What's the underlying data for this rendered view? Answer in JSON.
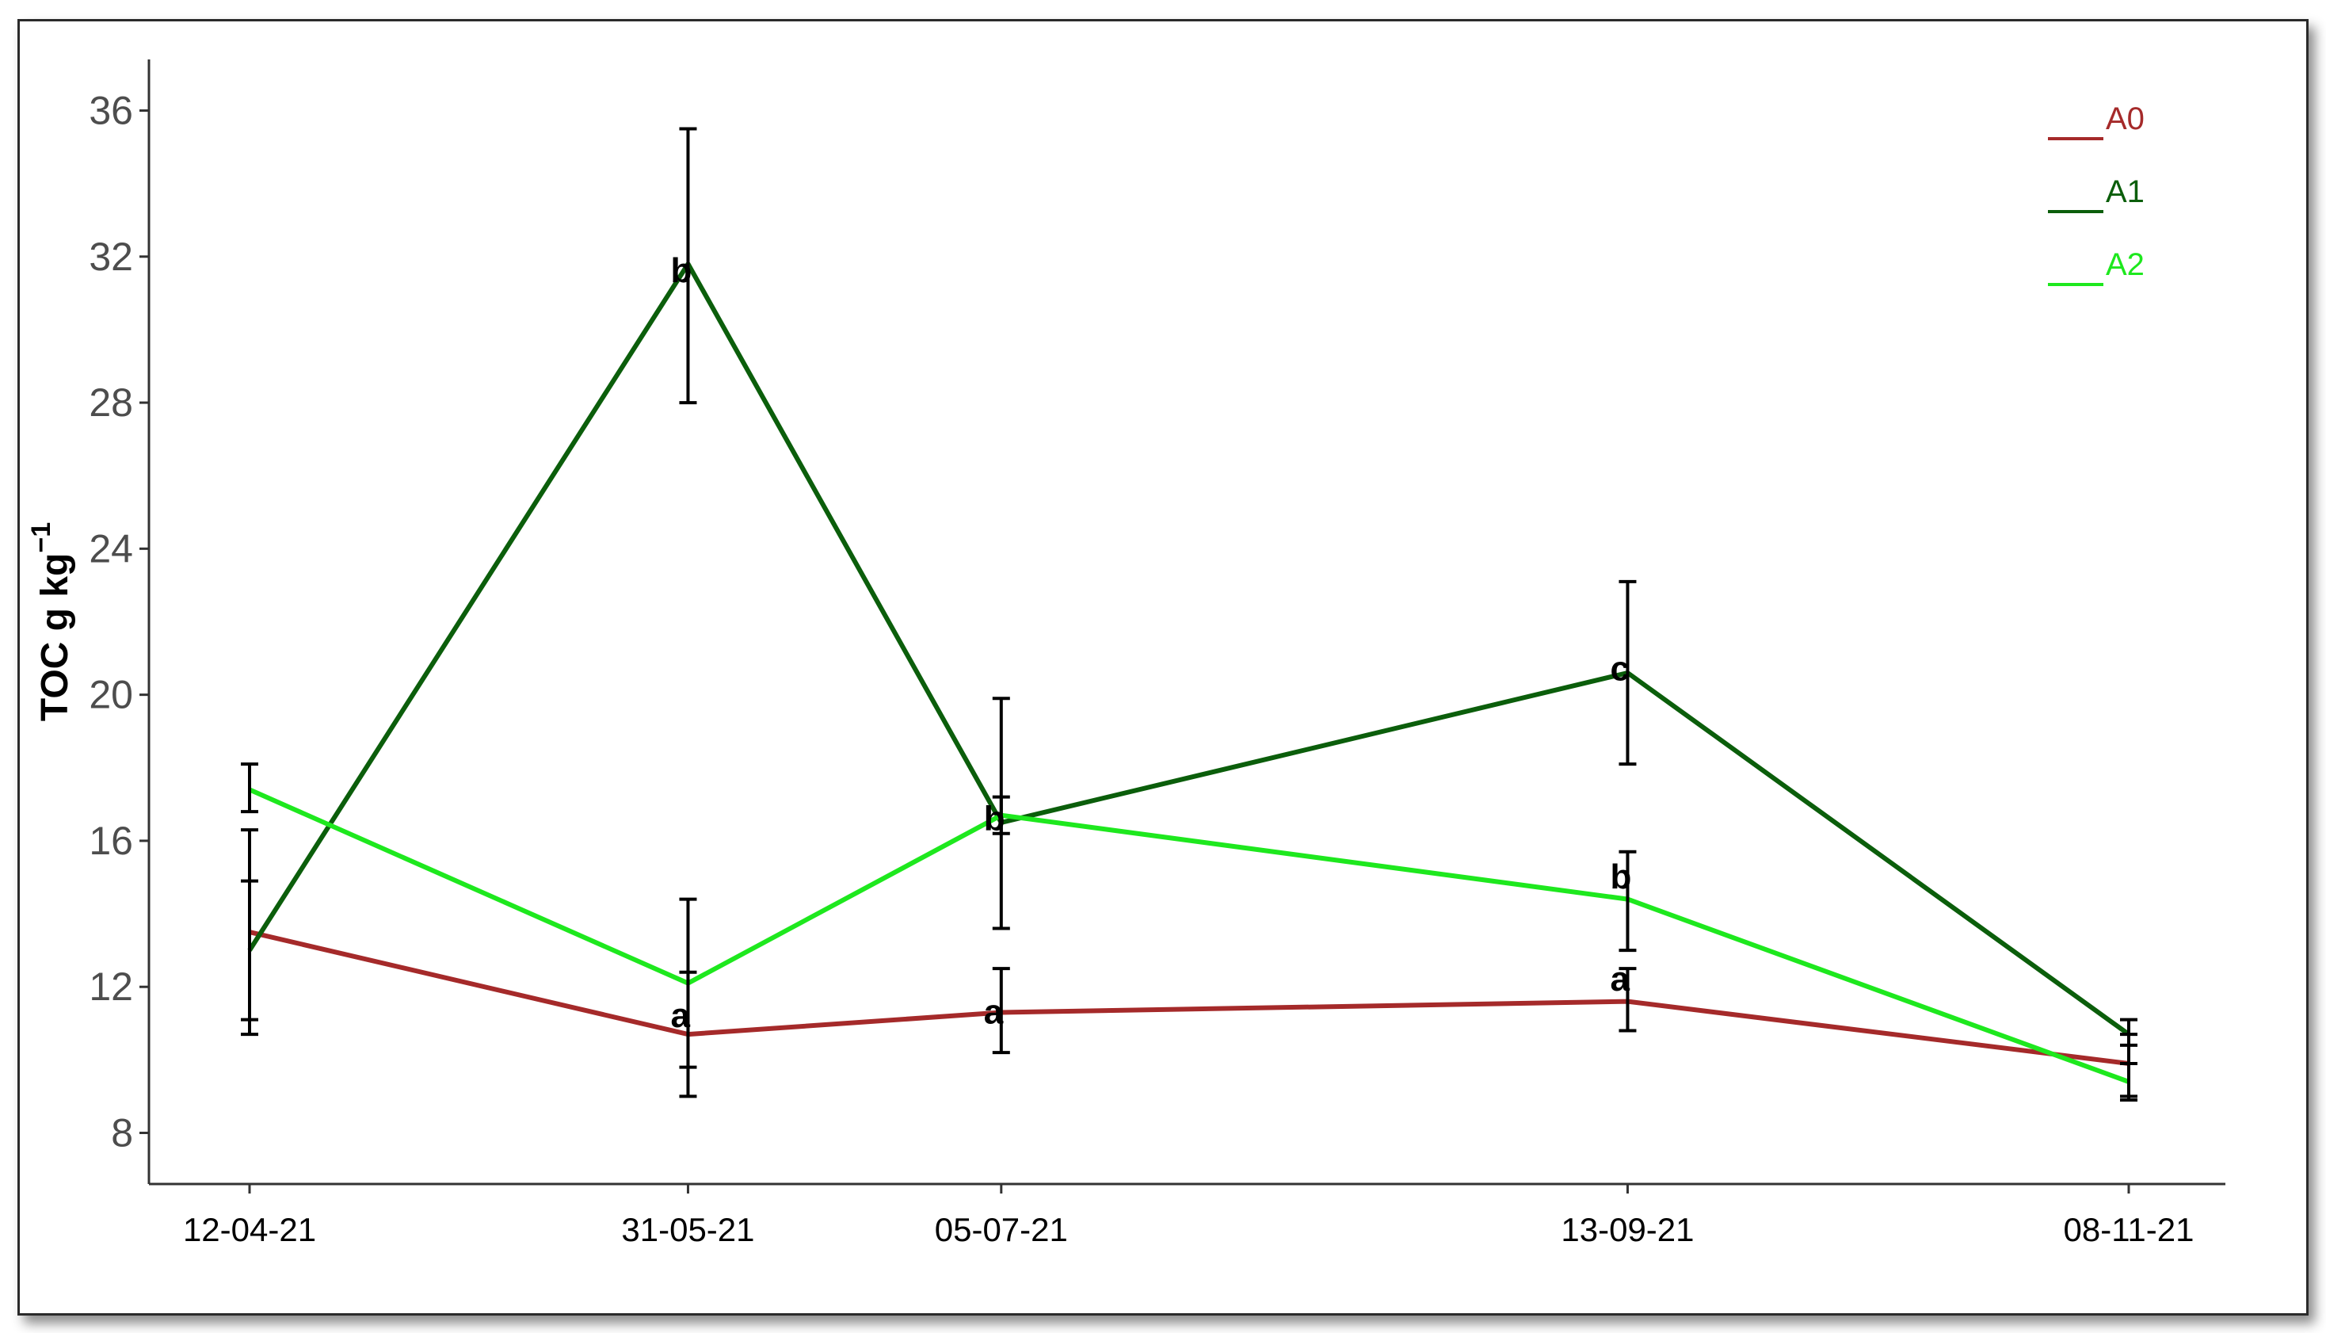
{
  "chart_data": {
    "type": "line",
    "title": "",
    "xlabel": "",
    "ylabel": "TOC g kg",
    "ylabel_superscript": "−1",
    "categories": [
      "12-04-21",
      "31-05-21",
      "05-07-21",
      "13-09-21",
      "08-11-21"
    ],
    "x_dates": [
      "2021-04-12",
      "2021-05-31",
      "2021-07-05",
      "2021-09-13",
      "2021-11-08"
    ],
    "ylim": [
      6.6,
      37.4
    ],
    "yticks": [
      8,
      12,
      16,
      20,
      24,
      28,
      32,
      36
    ],
    "ytick_labels": [
      "8",
      "12",
      "16",
      "20",
      "24",
      "28",
      "32",
      "36"
    ],
    "grid": false,
    "legend_position": "top-right",
    "series": [
      {
        "name": "A0",
        "color": "#a52a2a",
        "values": [
          13.5,
          10.7,
          11.3,
          11.6,
          9.9
        ],
        "error_low": [
          11.1,
          9.0,
          10.2,
          10.8,
          9.0
        ],
        "error_high": [
          16.3,
          12.4,
          12.5,
          12.5,
          10.7
        ]
      },
      {
        "name": "A1",
        "color": "#0b5e0b",
        "values": [
          13.0,
          31.8,
          16.5,
          20.6,
          10.7
        ],
        "error_low": [
          10.7,
          28.0,
          13.6,
          18.1,
          10.4
        ],
        "error_high": [
          14.9,
          35.5,
          19.9,
          23.1,
          11.1
        ]
      },
      {
        "name": "A2",
        "color": "#1ee81e",
        "values": [
          17.4,
          12.1,
          16.7,
          14.4,
          9.4
        ],
        "error_low": [
          16.8,
          9.8,
          16.2,
          13.0,
          8.9
        ],
        "error_high": [
          18.1,
          14.4,
          17.2,
          15.7,
          9.9
        ]
      }
    ],
    "annotations": [
      {
        "text": "b",
        "x": "2021-05-31",
        "y": 31.6
      },
      {
        "text": "a",
        "x": "2021-05-31",
        "y": 11.2
      },
      {
        "text": "b",
        "x": "2021-07-05",
        "y": 16.6
      },
      {
        "text": "a",
        "x": "2021-07-05",
        "y": 11.3
      },
      {
        "text": "c",
        "x": "2021-09-13",
        "y": 20.7
      },
      {
        "text": "b",
        "x": "2021-09-13",
        "y": 15.0
      },
      {
        "text": "a",
        "x": "2021-09-13",
        "y": 12.2
      }
    ]
  }
}
